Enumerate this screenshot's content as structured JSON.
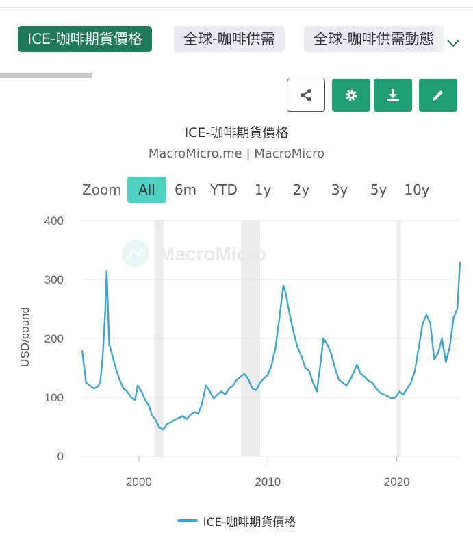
{
  "tabs": [
    {
      "label": "ICE-咖啡期貨價格",
      "active": true
    },
    {
      "label": "全球-咖啡供需",
      "active": false
    },
    {
      "label": "全球-咖啡供需動態",
      "active": false
    }
  ],
  "toolbar": {
    "share_icon": "share-icon",
    "settings_icon": "gear-icon",
    "download_icon": "download-icon",
    "edit_icon": "pencil-icon",
    "accent_color": "#1f9e74"
  },
  "range_selector": {
    "zoom_label": "Zoom",
    "buttons": [
      "All",
      "6m",
      "YTD",
      "1y",
      "2y",
      "3y",
      "5y",
      "10y"
    ],
    "selected": "All"
  },
  "watermark": "MacroMicro",
  "chart_data": {
    "type": "line",
    "title": "ICE-咖啡期貨價格",
    "subtitle": "MacroMicro.me | MacroMicro",
    "ylabel": "USD/pound",
    "xlabel": "",
    "ylim": [
      0,
      400
    ],
    "yticks": [
      0,
      100,
      200,
      300,
      400
    ],
    "xticks": [
      2000,
      2010,
      2020
    ],
    "xlim": [
      1995.6,
      2024.9
    ],
    "grid": true,
    "legend_position": "bottom",
    "recession_bands": [
      [
        2001.2,
        2001.9
      ],
      [
        2007.9,
        2009.4
      ],
      [
        2020.0,
        2020.3
      ]
    ],
    "series": [
      {
        "name": "ICE-咖啡期貨價格",
        "color": "#3ba6d6",
        "x": [
          1995.6,
          1995.9,
          1996.2,
          1996.5,
          1996.8,
          1997.0,
          1997.2,
          1997.4,
          1997.5,
          1997.7,
          1997.9,
          1998.2,
          1998.5,
          1998.8,
          1999.1,
          1999.4,
          1999.7,
          1999.9,
          2000.2,
          2000.5,
          2000.8,
          2001.0,
          2001.3,
          2001.6,
          2001.9,
          2002.2,
          2002.5,
          2002.8,
          2003.1,
          2003.4,
          2003.7,
          2004.0,
          2004.3,
          2004.6,
          2004.9,
          2005.2,
          2005.5,
          2005.8,
          2006.1,
          2006.4,
          2006.7,
          2007.0,
          2007.3,
          2007.6,
          2007.9,
          2008.2,
          2008.5,
          2008.8,
          2009.1,
          2009.4,
          2009.7,
          2010.0,
          2010.3,
          2010.6,
          2010.9,
          2011.2,
          2011.4,
          2011.7,
          2012.0,
          2012.3,
          2012.6,
          2012.9,
          2013.2,
          2013.5,
          2013.8,
          2014.1,
          2014.3,
          2014.6,
          2014.9,
          2015.2,
          2015.5,
          2015.8,
          2016.1,
          2016.4,
          2016.7,
          2016.9,
          2017.2,
          2017.5,
          2017.8,
          2018.1,
          2018.4,
          2018.7,
          2019.0,
          2019.3,
          2019.6,
          2019.9,
          2020.2,
          2020.5,
          2020.8,
          2021.1,
          2021.4,
          2021.7,
          2022.0,
          2022.3,
          2022.6,
          2022.9,
          2023.2,
          2023.5,
          2023.8,
          2024.1,
          2024.4,
          2024.7,
          2024.9
        ],
        "values": [
          180,
          125,
          120,
          115,
          118,
          125,
          170,
          250,
          315,
          190,
          175,
          150,
          130,
          115,
          110,
          100,
          95,
          120,
          110,
          95,
          85,
          70,
          62,
          48,
          45,
          55,
          58,
          62,
          65,
          68,
          63,
          70,
          75,
          72,
          90,
          120,
          110,
          98,
          105,
          110,
          105,
          115,
          120,
          130,
          135,
          140,
          130,
          115,
          112,
          125,
          132,
          138,
          155,
          185,
          235,
          290,
          275,
          240,
          210,
          185,
          170,
          150,
          145,
          125,
          110,
          160,
          200,
          190,
          175,
          150,
          130,
          125,
          120,
          130,
          145,
          155,
          140,
          135,
          128,
          125,
          115,
          108,
          105,
          102,
          98,
          100,
          110,
          105,
          115,
          125,
          145,
          185,
          225,
          240,
          225,
          165,
          175,
          200,
          160,
          185,
          235,
          250,
          330
        ]
      }
    ]
  }
}
